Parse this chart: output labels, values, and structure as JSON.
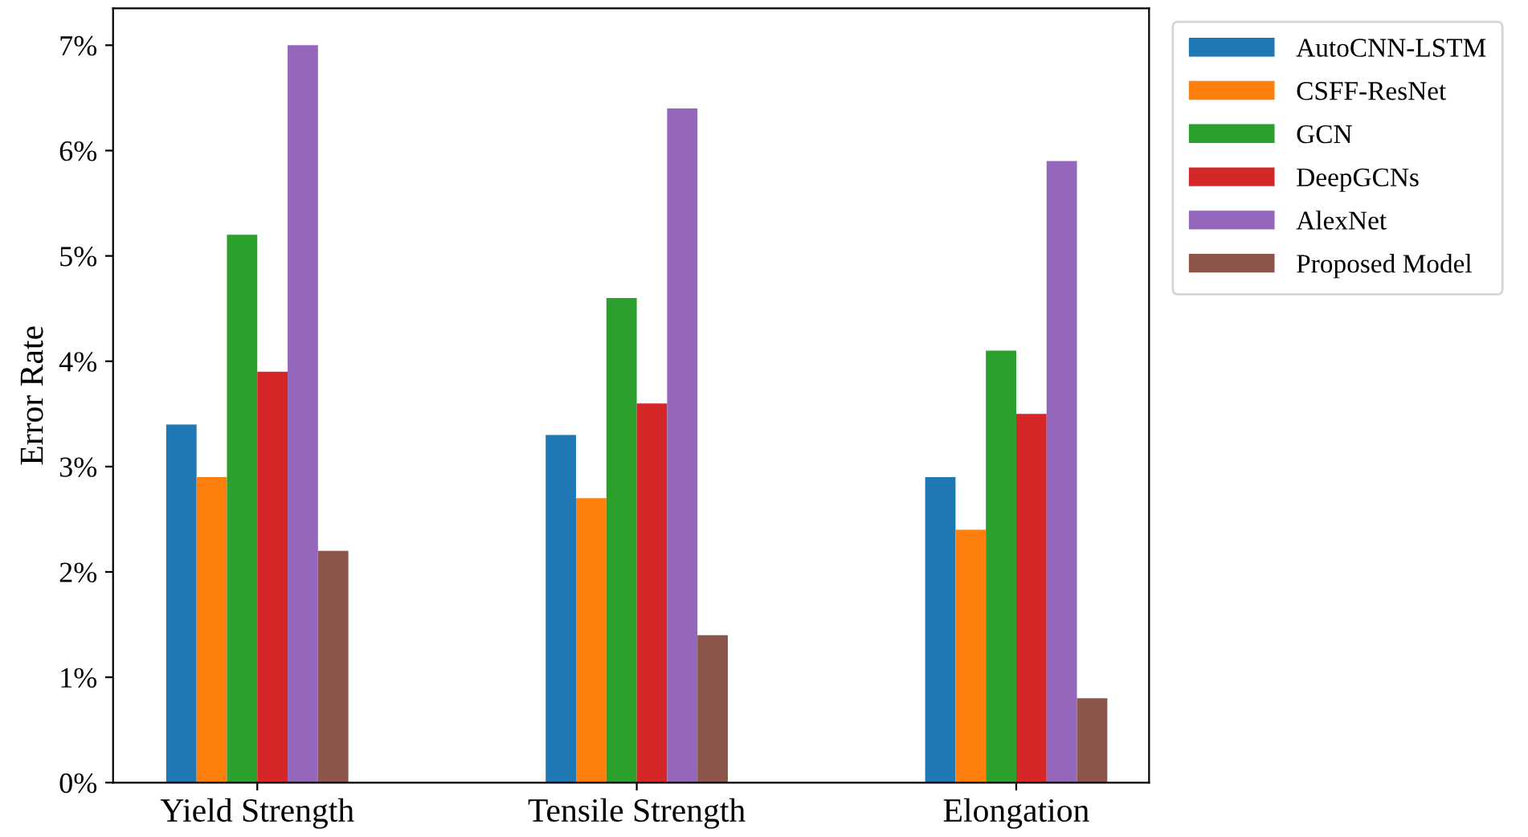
{
  "chart_data": {
    "type": "bar",
    "ylabel": "Error Rate",
    "categories": [
      "Yield Strength",
      "Tensile Strength",
      "Elongation"
    ],
    "series": [
      {
        "name": "AutoCNN-LSTM",
        "color": "#1f77b4",
        "values": [
          3.4,
          3.3,
          2.9
        ]
      },
      {
        "name": "CSFF-ResNet",
        "color": "#ff7f0e",
        "values": [
          2.9,
          2.7,
          2.4
        ]
      },
      {
        "name": "GCN",
        "color": "#2ca02c",
        "values": [
          5.2,
          4.6,
          4.1
        ]
      },
      {
        "name": "DeepGCNs",
        "color": "#d62728",
        "values": [
          3.9,
          3.6,
          3.5
        ]
      },
      {
        "name": "AlexNet",
        "color": "#9467bd",
        "values": [
          7.0,
          6.4,
          5.9
        ]
      },
      {
        "name": "Proposed Model",
        "color": "#8c564b",
        "values": [
          2.2,
          1.4,
          0.8
        ]
      }
    ],
    "ylim": [
      0,
      7.35
    ],
    "yticks": [
      {
        "value": 0,
        "label": "0%"
      },
      {
        "value": 1,
        "label": "1%"
      },
      {
        "value": 2,
        "label": "2%"
      },
      {
        "value": 3,
        "label": "3%"
      },
      {
        "value": 4,
        "label": "4%"
      },
      {
        "value": 5,
        "label": "5%"
      },
      {
        "value": 6,
        "label": "6%"
      },
      {
        "value": 7,
        "label": "7%"
      }
    ],
    "grid": false,
    "legend": "top right"
  }
}
